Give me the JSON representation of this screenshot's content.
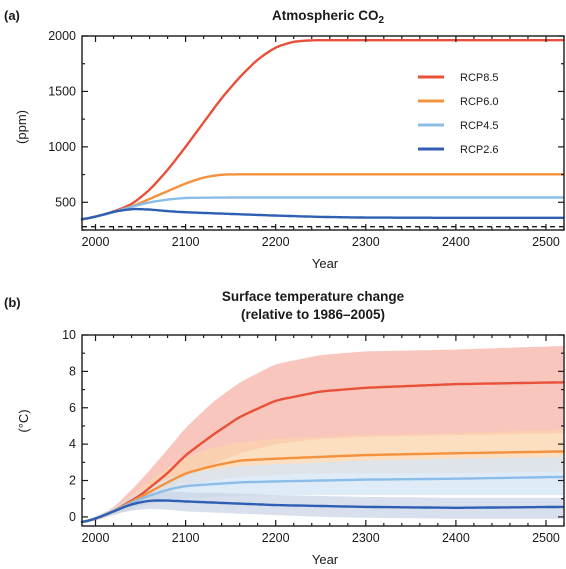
{
  "chart_data": [
    {
      "type": "line",
      "panel_label": "(a)",
      "title": "Atmospheric CO",
      "title_subscript": "2",
      "xlabel": "Year",
      "ylabel": "(ppm)",
      "xlim": [
        1985,
        2520
      ],
      "ylim": [
        250,
        2000
      ],
      "xticks": [
        2000,
        2100,
        2200,
        2300,
        2400,
        2500
      ],
      "yticks": [
        500,
        1000,
        1500,
        2000
      ],
      "legend_position": "right",
      "reference_line": {
        "style": "dashed",
        "y": 280,
        "color": "#1a1a1a"
      },
      "series": [
        {
          "name": "RCP8.5",
          "color": "#e8503a",
          "x": [
            1985,
            2000,
            2020,
            2040,
            2060,
            2080,
            2100,
            2120,
            2140,
            2160,
            2180,
            2200,
            2220,
            2240,
            2250,
            2300,
            2400,
            2520
          ],
          "y": [
            345,
            370,
            415,
            480,
            610,
            790,
            1000,
            1220,
            1440,
            1630,
            1790,
            1900,
            1950,
            1962,
            1962,
            1962,
            1962,
            1962
          ]
        },
        {
          "name": "RCP6.0",
          "color": "#f4913d",
          "x": [
            1985,
            2000,
            2020,
            2040,
            2060,
            2080,
            2100,
            2120,
            2140,
            2150,
            2200,
            2300,
            2400,
            2520
          ],
          "y": [
            345,
            370,
            410,
            460,
            530,
            600,
            670,
            725,
            750,
            752,
            752,
            752,
            752,
            752
          ]
        },
        {
          "name": "RCP4.5",
          "color": "#8bbde8",
          "x": [
            1985,
            2000,
            2020,
            2040,
            2060,
            2080,
            2100,
            2150,
            2200,
            2300,
            2400,
            2520
          ],
          "y": [
            345,
            370,
            410,
            460,
            500,
            525,
            540,
            543,
            543,
            543,
            543,
            543
          ]
        },
        {
          "name": "RCP2.6",
          "color": "#2f5fb3",
          "x": [
            1985,
            2000,
            2020,
            2040,
            2060,
            2080,
            2100,
            2150,
            2200,
            2250,
            2300,
            2400,
            2520
          ],
          "y": [
            345,
            370,
            415,
            440,
            435,
            420,
            410,
            395,
            380,
            368,
            362,
            360,
            360
          ]
        }
      ]
    },
    {
      "type": "line",
      "panel_label": "(b)",
      "title": "Surface temperature change",
      "subtitle": "(relative to 1986–2005)",
      "xlabel": "Year",
      "ylabel": "(°C)",
      "xlim": [
        1985,
        2520
      ],
      "ylim": [
        -0.5,
        10
      ],
      "xticks": [
        2000,
        2100,
        2200,
        2300,
        2400,
        2500
      ],
      "yticks": [
        0,
        2,
        4,
        6,
        8,
        10
      ],
      "series": [
        {
          "name": "RCP8.5",
          "color": "#e8503a",
          "band_color": "#f6b3a6",
          "x": [
            1985,
            2000,
            2020,
            2050,
            2080,
            2100,
            2130,
            2160,
            2200,
            2250,
            2300,
            2400,
            2520
          ],
          "y": [
            -0.3,
            -0.1,
            0.3,
            1.2,
            2.4,
            3.4,
            4.5,
            5.5,
            6.4,
            6.9,
            7.1,
            7.3,
            7.4
          ],
          "upper": [
            -0.25,
            0.0,
            0.5,
            2.0,
            3.7,
            4.9,
            6.3,
            7.4,
            8.4,
            8.9,
            9.1,
            9.2,
            9.4
          ],
          "lower": [
            -0.35,
            -0.2,
            0.1,
            0.6,
            1.5,
            2.2,
            2.9,
            3.5,
            4.0,
            4.3,
            4.4,
            4.5,
            4.6
          ]
        },
        {
          "name": "RCP6.0",
          "color": "#f4913d",
          "band_color": "#fbd3ac",
          "x": [
            1985,
            2000,
            2020,
            2050,
            2080,
            2100,
            2130,
            2160,
            2200,
            2250,
            2300,
            2400,
            2520
          ],
          "y": [
            -0.3,
            -0.1,
            0.3,
            1.1,
            1.9,
            2.4,
            2.8,
            3.1,
            3.2,
            3.3,
            3.4,
            3.5,
            3.6
          ],
          "upper": [
            -0.25,
            0.0,
            0.45,
            1.6,
            2.7,
            3.3,
            3.8,
            4.1,
            4.3,
            4.4,
            4.5,
            4.6,
            4.8
          ],
          "lower": [
            -0.35,
            -0.2,
            0.15,
            0.7,
            1.3,
            1.7,
            2.0,
            2.2,
            2.3,
            2.4,
            2.4,
            2.4,
            2.5
          ]
        },
        {
          "name": "RCP4.5",
          "color": "#8bbde8",
          "band_color": "#d4e6f5",
          "x": [
            1985,
            2000,
            2020,
            2050,
            2080,
            2100,
            2130,
            2160,
            2200,
            2250,
            2300,
            2400,
            2520
          ],
          "y": [
            -0.3,
            -0.1,
            0.3,
            1.0,
            1.5,
            1.7,
            1.8,
            1.9,
            1.95,
            2.0,
            2.05,
            2.1,
            2.2
          ],
          "upper": [
            -0.25,
            0.0,
            0.45,
            1.4,
            2.1,
            2.4,
            2.6,
            2.8,
            2.9,
            3.0,
            3.1,
            3.2,
            3.3
          ],
          "lower": [
            -0.35,
            -0.2,
            0.15,
            0.6,
            0.9,
            1.0,
            1.1,
            1.15,
            1.2,
            1.2,
            1.2,
            1.2,
            1.2
          ]
        },
        {
          "name": "RCP2.6",
          "color": "#2f5fb3",
          "band_color": "#c9d6e6",
          "x": [
            1985,
            2000,
            2020,
            2040,
            2060,
            2080,
            2100,
            2150,
            2200,
            2250,
            2300,
            2400,
            2520
          ],
          "y": [
            -0.3,
            -0.1,
            0.3,
            0.7,
            0.9,
            0.9,
            0.85,
            0.75,
            0.65,
            0.6,
            0.55,
            0.5,
            0.55
          ],
          "upper": [
            -0.25,
            0.0,
            0.45,
            1.1,
            1.35,
            1.4,
            1.35,
            1.3,
            1.2,
            1.15,
            1.1,
            1.05,
            1.05
          ],
          "lower": [
            -0.35,
            -0.2,
            0.15,
            0.35,
            0.45,
            0.4,
            0.3,
            0.2,
            0.1,
            0.0,
            -0.05,
            -0.1,
            -0.1
          ]
        }
      ]
    }
  ]
}
